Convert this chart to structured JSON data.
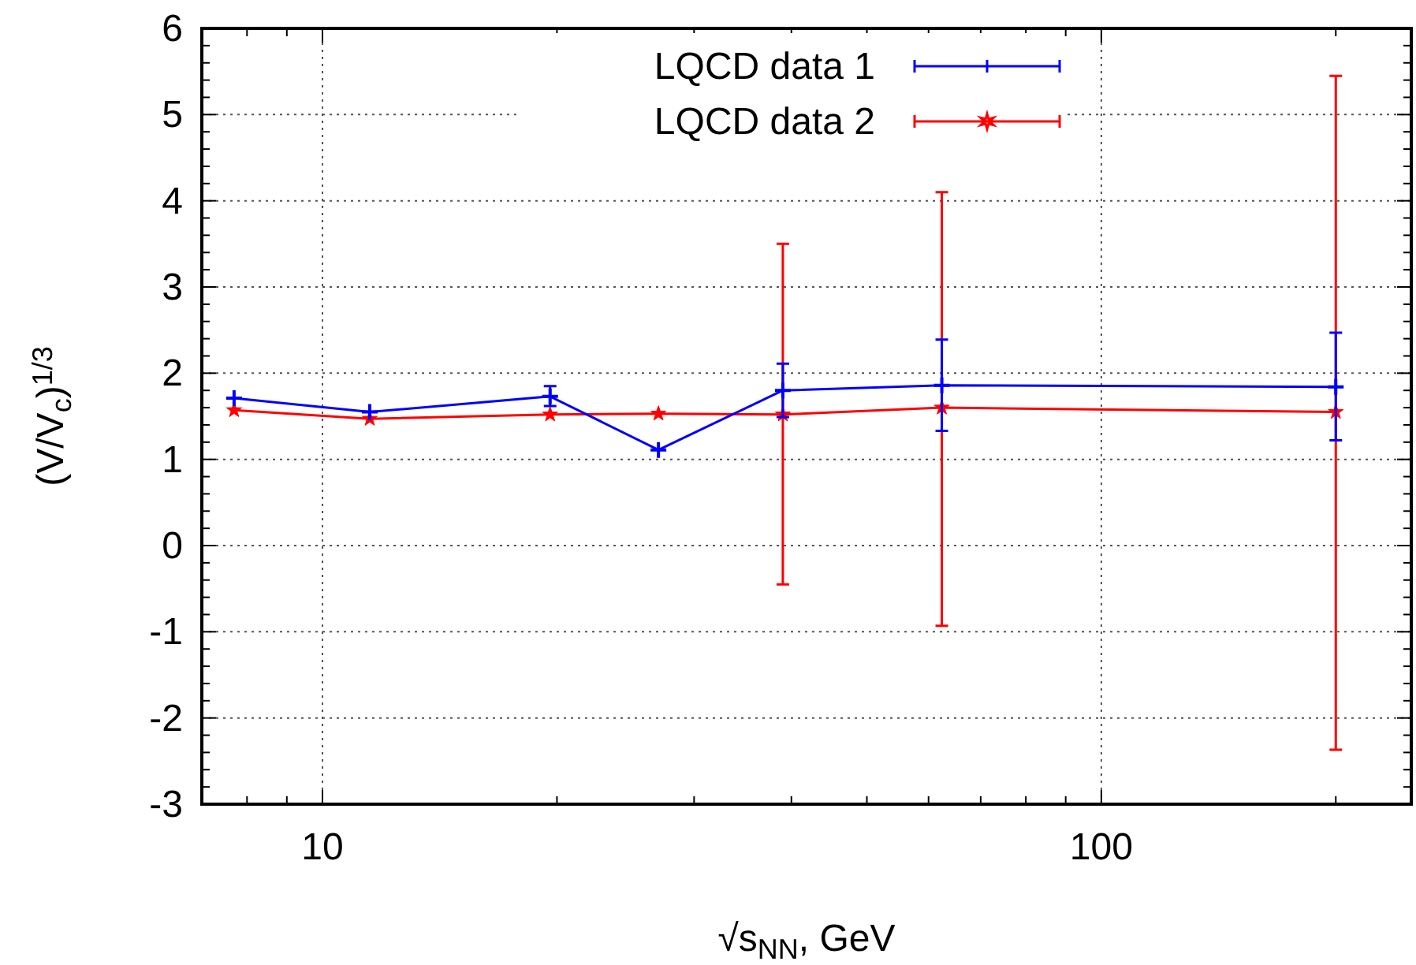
{
  "chart_data": {
    "type": "line",
    "xlabel": "√s$_{NN}$, GeV",
    "ylabel": "(V/V$_{c}$)$^{1/3}$",
    "log": "x",
    "xlim": [
      7,
      250
    ],
    "xticks": [
      10,
      100
    ],
    "ylim": [
      -3,
      6
    ],
    "yticks": [
      -3,
      -2,
      -1,
      0,
      1,
      2,
      3,
      4,
      5,
      6
    ],
    "grid": true,
    "legend": "top",
    "x": [
      7.7,
      11.5,
      19.6,
      27,
      39,
      62.4,
      200
    ],
    "series": [
      {
        "name": "LQCD data 1",
        "color": "#0000ff",
        "marker": "cross",
        "values": [
          1.71,
          1.55,
          1.73,
          1.11,
          1.8,
          1.86,
          1.84
        ],
        "errors": [
          null,
          null,
          [
            1.62,
            1.85
          ],
          null,
          [
            1.49,
            2.11
          ],
          [
            1.33,
            2.39
          ],
          [
            1.22,
            2.47
          ]
        ]
      },
      {
        "name": "LQCD data 2",
        "color": "#ff0000",
        "marker": "star",
        "values": [
          1.57,
          1.47,
          1.52,
          1.53,
          1.52,
          1.6,
          1.55
        ],
        "errors": [
          null,
          null,
          null,
          null,
          [
            -0.45,
            3.5
          ],
          [
            -0.93,
            4.1
          ],
          [
            -2.37,
            5.45
          ]
        ]
      }
    ]
  }
}
